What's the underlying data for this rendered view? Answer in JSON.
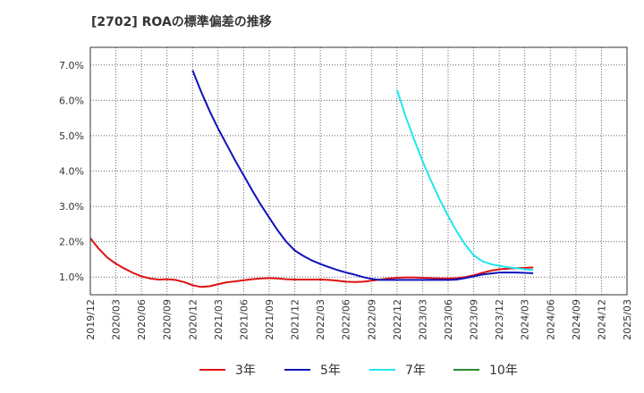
{
  "chart_data": {
    "type": "line",
    "title": "[2702]  ROAの標準偏差の推移",
    "xlabel": "",
    "ylabel": "",
    "ylim": [
      0.5,
      7.5
    ],
    "grid": true,
    "legend_position": "bottom",
    "x_ticks": [
      "2019/12",
      "2020/03",
      "2020/06",
      "2020/09",
      "2020/12",
      "2021/03",
      "2021/06",
      "2021/09",
      "2021/12",
      "2022/03",
      "2022/06",
      "2022/09",
      "2022/12",
      "2023/03",
      "2023/06",
      "2023/09",
      "2023/12",
      "2024/03",
      "2024/06",
      "2024/09",
      "2024/12",
      "2025/03"
    ],
    "y_ticks": [
      {
        "value": 1,
        "label": "1.0%"
      },
      {
        "value": 2,
        "label": "2.0%"
      },
      {
        "value": 3,
        "label": "3.0%"
      },
      {
        "value": 4,
        "label": "4.0%"
      },
      {
        "value": 5,
        "label": "5.0%"
      },
      {
        "value": 6,
        "label": "6.0%"
      },
      {
        "value": 7,
        "label": "7.0%"
      }
    ],
    "series": [
      {
        "name": "3年",
        "color": "#dd1111",
        "points": [
          [
            0,
            2.1
          ],
          [
            1,
            1.8
          ],
          [
            2,
            1.55
          ],
          [
            3,
            1.38
          ],
          [
            4,
            1.24
          ],
          [
            5,
            1.12
          ],
          [
            6,
            1.02
          ],
          [
            7,
            0.96
          ],
          [
            8,
            0.93
          ],
          [
            9,
            0.94
          ],
          [
            10,
            0.92
          ],
          [
            11,
            0.86
          ],
          [
            12,
            0.77
          ],
          [
            13,
            0.72
          ],
          [
            14,
            0.74
          ],
          [
            15,
            0.8
          ],
          [
            16,
            0.85
          ],
          [
            17,
            0.88
          ],
          [
            18,
            0.91
          ],
          [
            19,
            0.94
          ],
          [
            20,
            0.96
          ],
          [
            21,
            0.97
          ],
          [
            22,
            0.96
          ],
          [
            23,
            0.94
          ],
          [
            24,
            0.93
          ],
          [
            25,
            0.93
          ],
          [
            26,
            0.93
          ],
          [
            27,
            0.93
          ],
          [
            28,
            0.92
          ],
          [
            29,
            0.9
          ],
          [
            30,
            0.87
          ],
          [
            31,
            0.86
          ],
          [
            32,
            0.87
          ],
          [
            33,
            0.9
          ],
          [
            34,
            0.93
          ],
          [
            35,
            0.96
          ],
          [
            36,
            0.98
          ],
          [
            37,
            0.99
          ],
          [
            38,
            0.99
          ],
          [
            39,
            0.98
          ],
          [
            40,
            0.97
          ],
          [
            41,
            0.96
          ],
          [
            42,
            0.96
          ],
          [
            43,
            0.97
          ],
          [
            44,
            1.0
          ],
          [
            45,
            1.05
          ],
          [
            46,
            1.12
          ],
          [
            47,
            1.18
          ],
          [
            48,
            1.22
          ],
          [
            49,
            1.24
          ],
          [
            50,
            1.25
          ],
          [
            51,
            1.26
          ],
          [
            52,
            1.27
          ]
        ]
      },
      {
        "name": "5年",
        "color": "#1111bb",
        "points": [
          [
            12,
            6.85
          ],
          [
            13,
            6.25
          ],
          [
            14,
            5.7
          ],
          [
            15,
            5.2
          ],
          [
            16,
            4.75
          ],
          [
            17,
            4.3
          ],
          [
            18,
            3.88
          ],
          [
            19,
            3.45
          ],
          [
            20,
            3.05
          ],
          [
            21,
            2.68
          ],
          [
            22,
            2.32
          ],
          [
            23,
            2.0
          ],
          [
            24,
            1.75
          ],
          [
            25,
            1.6
          ],
          [
            26,
            1.47
          ],
          [
            27,
            1.37
          ],
          [
            28,
            1.28
          ],
          [
            29,
            1.2
          ],
          [
            30,
            1.13
          ],
          [
            31,
            1.07
          ],
          [
            32,
            1.0
          ],
          [
            33,
            0.95
          ],
          [
            34,
            0.92
          ],
          [
            35,
            0.92
          ],
          [
            36,
            0.92
          ],
          [
            37,
            0.92
          ],
          [
            38,
            0.92
          ],
          [
            39,
            0.92
          ],
          [
            40,
            0.92
          ],
          [
            41,
            0.92
          ],
          [
            42,
            0.92
          ],
          [
            43,
            0.93
          ],
          [
            44,
            0.97
          ],
          [
            45,
            1.02
          ],
          [
            46,
            1.07
          ],
          [
            47,
            1.1
          ],
          [
            48,
            1.13
          ],
          [
            49,
            1.13
          ],
          [
            50,
            1.13
          ],
          [
            51,
            1.12
          ],
          [
            52,
            1.11
          ]
        ]
      },
      {
        "name": "7年",
        "color": "#22e6ee",
        "points": [
          [
            36,
            6.3
          ],
          [
            37,
            5.55
          ],
          [
            38,
            4.9
          ],
          [
            39,
            4.28
          ],
          [
            40,
            3.72
          ],
          [
            41,
            3.2
          ],
          [
            42,
            2.73
          ],
          [
            43,
            2.3
          ],
          [
            44,
            1.92
          ],
          [
            45,
            1.62
          ],
          [
            46,
            1.45
          ],
          [
            47,
            1.37
          ],
          [
            48,
            1.32
          ],
          [
            49,
            1.28
          ],
          [
            50,
            1.25
          ],
          [
            51,
            1.22
          ],
          [
            52,
            1.2
          ]
        ]
      },
      {
        "name": "10年",
        "color": "#2a8a2a",
        "points": []
      }
    ]
  }
}
